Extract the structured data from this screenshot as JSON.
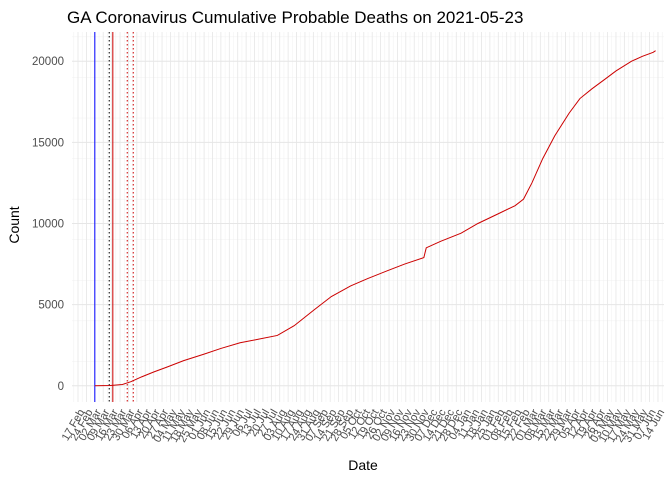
{
  "chart_data": {
    "type": "line",
    "title": "GA Coronavirus Cumulative Probable Deaths on 2021-05-23",
    "xlabel": "Date",
    "ylabel": "Count",
    "x_range": [
      "2020-02-12",
      "2021-06-19"
    ],
    "ylim": [
      -1000,
      21800
    ],
    "y_ticks": [
      0,
      5000,
      10000,
      15000,
      20000
    ],
    "x_tick_labels": [
      "17 Feb",
      "24 Feb",
      "02 Mar",
      "09 Mar",
      "16 Mar",
      "23 Mar",
      "30 Mar",
      "06 Apr",
      "13 Apr",
      "20 Apr",
      "27 Apr",
      "04 May",
      "11 May",
      "18 May",
      "25 May",
      "01 Jun",
      "08 Jun",
      "15 Jun",
      "22 Jun",
      "29 Jun",
      "06 Jul",
      "13 Jul",
      "20 Jul",
      "27 Jul",
      "03 Aug",
      "10 Aug",
      "17 Aug",
      "24 Aug",
      "31 Aug",
      "07 Sep",
      "14 Sep",
      "21 Sep",
      "28 Sep",
      "05 Oct",
      "12 Oct",
      "19 Oct",
      "26 Oct",
      "02 Nov",
      "09 Nov",
      "16 Nov",
      "23 Nov",
      "30 Nov",
      "07 Dec",
      "14 Dec",
      "21 Dec",
      "28 Dec",
      "04 Jan",
      "11 Jan",
      "18 Jan",
      "25 Jan",
      "01 Feb",
      "08 Feb",
      "15 Feb",
      "22 Feb",
      "01 Mar",
      "08 Mar",
      "15 Mar",
      "22 Mar",
      "29 Mar",
      "05 Apr",
      "12 Apr",
      "19 Apr",
      "26 Apr",
      "03 May",
      "10 May",
      "17 May",
      "24 May",
      "31 May",
      "07 Jun",
      "14 Jun"
    ],
    "x_tick_start": "2020-02-17",
    "x_tick_step_days": 7,
    "grid": true,
    "vertical_lines": [
      {
        "date": "2020-03-02",
        "color": "#0000ff",
        "style": "solid"
      },
      {
        "date": "2020-03-14",
        "color": "#000000",
        "style": "dotted"
      },
      {
        "date": "2020-03-17",
        "color": "#cc0000",
        "style": "solid"
      },
      {
        "date": "2020-03-29",
        "color": "#cc0000",
        "style": "dotted"
      },
      {
        "date": "2020-04-03",
        "color": "#cc0000",
        "style": "dotted"
      }
    ],
    "series": [
      {
        "color": "#cc0000",
        "points": [
          [
            "2020-03-02",
            0
          ],
          [
            "2020-03-15",
            20
          ],
          [
            "2020-03-25",
            80
          ],
          [
            "2020-04-01",
            250
          ],
          [
            "2020-04-10",
            550
          ],
          [
            "2020-04-20",
            850
          ],
          [
            "2020-05-01",
            1150
          ],
          [
            "2020-05-15",
            1550
          ],
          [
            "2020-06-01",
            1950
          ],
          [
            "2020-06-15",
            2300
          ],
          [
            "2020-07-01",
            2650
          ],
          [
            "2020-07-15",
            2850
          ],
          [
            "2020-08-01",
            3100
          ],
          [
            "2020-08-15",
            3700
          ],
          [
            "2020-09-01",
            4700
          ],
          [
            "2020-09-15",
            5500
          ],
          [
            "2020-10-01",
            6150
          ],
          [
            "2020-10-15",
            6600
          ],
          [
            "2020-11-01",
            7100
          ],
          [
            "2020-11-15",
            7500
          ],
          [
            "2020-12-01",
            7900
          ],
          [
            "2020-12-03",
            8500
          ],
          [
            "2020-12-15",
            8900
          ],
          [
            "2021-01-01",
            9400
          ],
          [
            "2021-01-15",
            10000
          ],
          [
            "2021-02-01",
            10600
          ],
          [
            "2021-02-15",
            11100
          ],
          [
            "2021-02-22",
            11500
          ],
          [
            "2021-03-01",
            12500
          ],
          [
            "2021-03-10",
            14000
          ],
          [
            "2021-03-20",
            15400
          ],
          [
            "2021-04-01",
            16800
          ],
          [
            "2021-04-10",
            17700
          ],
          [
            "2021-04-20",
            18300
          ],
          [
            "2021-05-01",
            18900
          ],
          [
            "2021-05-10",
            19400
          ],
          [
            "2021-05-23",
            20000
          ],
          [
            "2021-06-01",
            20300
          ],
          [
            "2021-06-10",
            20550
          ],
          [
            "2021-06-12",
            20650
          ]
        ]
      }
    ]
  }
}
